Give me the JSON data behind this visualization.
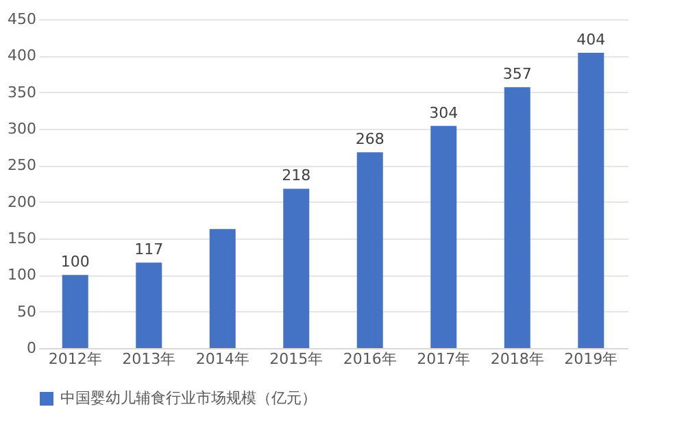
{
  "chart_data": {
    "type": "bar",
    "categories": [
      "2012年",
      "2013年",
      "2014年",
      "2015年",
      "2016年",
      "2017年",
      "2018年",
      "2019年"
    ],
    "series": [
      {
        "name": "中国婴幼儿辅食行业市场规模（亿元）",
        "color": "#4472c4",
        "values": [
          100,
          117,
          163,
          218,
          268,
          304,
          357,
          404
        ],
        "value_labels": [
          "100",
          "117",
          null,
          "218",
          "268",
          "304",
          "357",
          "404"
        ]
      }
    ],
    "ylim": [
      0,
      450
    ],
    "yticks": [
      0,
      50,
      100,
      150,
      200,
      250,
      300,
      350,
      400,
      450
    ],
    "grid": "y",
    "legend": "bottom"
  }
}
